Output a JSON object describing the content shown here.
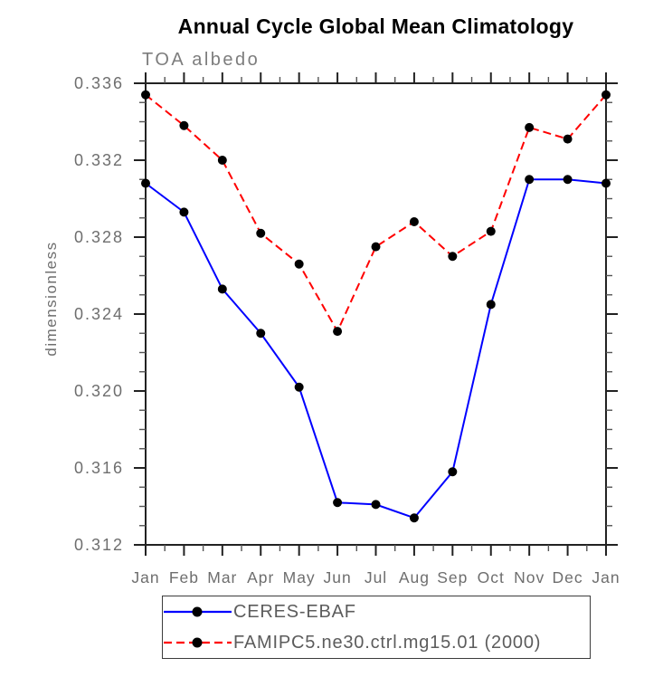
{
  "chart_data": {
    "type": "line",
    "title": "Annual Cycle Global Mean Climatology",
    "subtitle": "TOA albedo",
    "xlabel": "",
    "ylabel": "dimensionless",
    "categories": [
      "Jan",
      "Feb",
      "Mar",
      "Apr",
      "May",
      "Jun",
      "Jul",
      "Aug",
      "Sep",
      "Oct",
      "Nov",
      "Dec",
      "Jan"
    ],
    "series": [
      {
        "name": "CERES-EBAF",
        "color": "#0000ff",
        "style": "solid",
        "marker": "circle",
        "marker_color": "#000000",
        "values": [
          0.3308,
          0.3293,
          0.3253,
          0.323,
          0.3202,
          0.3142,
          0.3141,
          0.3134,
          0.3158,
          0.3245,
          0.331,
          0.331,
          0.3308
        ]
      },
      {
        "name": "FAMIPC5.ne30.ctrl.mg15.01 (2000)",
        "color": "#ff0000",
        "style": "dashed",
        "marker": "circle",
        "marker_color": "#000000",
        "values": [
          0.3354,
          0.3338,
          0.332,
          0.3282,
          0.3266,
          0.3231,
          0.3275,
          0.3288,
          0.327,
          0.3283,
          0.3337,
          0.3331,
          0.3354
        ]
      }
    ],
    "ylim": [
      0.312,
      0.336
    ],
    "ytick_step": 0.004,
    "ytick_minor_step": 0.001,
    "ytick_labels": [
      "0.312",
      "0.316",
      "0.320",
      "0.324",
      "0.328",
      "0.332",
      "0.336"
    ],
    "grid": false,
    "legend_position": "bottom"
  },
  "style": {
    "axis_color": "#222222",
    "minor_tick_color": "#555555",
    "tick_label_color": "#6e6e6e"
  }
}
